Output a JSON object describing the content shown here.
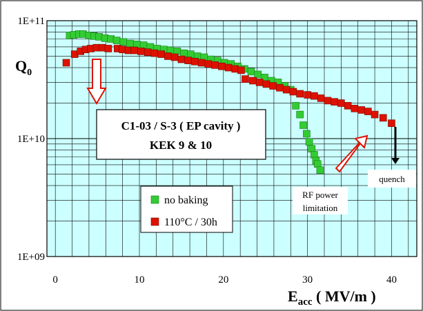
{
  "chart_data": {
    "type": "scatter",
    "ylabel": "Q",
    "ylabel_sub": "0",
    "xlabel_main": "E",
    "xlabel_sub": "acc",
    "xlabel_unit": " ( MV/m )",
    "xlim": [
      -1,
      43
    ],
    "ylim": [
      1000000000,
      100000000000
    ],
    "yscale": "log",
    "x_ticks": [
      "0",
      "10",
      "20",
      "30",
      "40"
    ],
    "y_ticks": [
      "1E+11",
      "1E+10",
      "1E+09"
    ],
    "grid": true,
    "background_color": "#ccffff",
    "title_lines": [
      "C1-03 / S-3 ( EP cavity )",
      "KEK 9 & 10"
    ],
    "legend_placement": "bottom-center",
    "annotations": {
      "quench": "quench",
      "rf_power_line1": "RF power",
      "rf_power_line2": "limitation"
    },
    "series": [
      {
        "name": "no baking",
        "color": "#33cc33",
        "x": [
          1.7,
          2.2,
          2.8,
          3.3,
          4.0,
          4.6,
          5.2,
          5.9,
          6.6,
          7.3,
          8.1,
          8.9,
          9.7,
          10.5,
          11.3,
          12.1,
          12.9,
          13.7,
          14.5,
          15.3,
          16.1,
          16.9,
          17.7,
          18.5,
          19.3,
          20.1,
          20.9,
          21.7,
          22.5,
          23.3,
          24.1,
          24.9,
          25.7,
          26.5,
          27.3,
          28.0,
          28.6,
          29.1,
          29.5,
          29.9,
          30.2,
          30.5,
          30.8,
          31.0,
          31.2,
          31.5
        ],
        "y": [
          75000000000.0,
          76000000000.0,
          77000000000.0,
          77000000000.0,
          75000000000.0,
          74000000000.0,
          73000000000.0,
          71000000000.0,
          70000000000.0,
          68000000000.0,
          66000000000.0,
          64000000000.0,
          63000000000.0,
          62000000000.0,
          60000000000.0,
          58000000000.0,
          57000000000.0,
          56000000000.0,
          55000000000.0,
          53000000000.0,
          52000000000.0,
          50000000000.0,
          49000000000.0,
          47000000000.0,
          46000000000.0,
          44000000000.0,
          43000000000.0,
          41000000000.0,
          39000000000.0,
          37000000000.0,
          35000000000.0,
          33000000000.0,
          31000000000.0,
          30000000000.0,
          28000000000.0,
          26000000000.0,
          19000000000.0,
          16000000000.0,
          13000000000.0,
          11000000000.0,
          9400000000.0,
          8200000000.0,
          7300000000.0,
          6500000000.0,
          6100000000.0,
          5400000000.0
        ]
      },
      {
        "name": "110°C / 30h",
        "color": "#dd1100",
        "x": [
          1.3,
          2.3,
          3.0,
          3.6,
          4.2,
          4.9,
          5.6,
          6.3,
          7.4,
          8.0,
          8.7,
          9.4,
          10.2,
          11.0,
          11.8,
          12.6,
          13.4,
          14.2,
          15.0,
          15.8,
          16.6,
          17.4,
          18.2,
          19.0,
          19.8,
          20.6,
          21.4,
          22.1,
          22.6,
          23.5,
          24.3,
          25.1,
          25.9,
          26.7,
          27.5,
          28.3,
          29.1,
          30.0,
          30.8,
          31.6,
          32.4,
          33.2,
          34.0,
          34.8,
          35.6,
          36.4,
          37.2,
          38.0,
          39.0,
          40.0
        ],
        "y": [
          44000000000.0,
          52000000000.0,
          55000000000.0,
          57000000000.0,
          58000000000.0,
          59000000000.0,
          59000000000.0,
          58000000000.0,
          58000000000.0,
          57000000000.0,
          56000000000.0,
          56000000000.0,
          55000000000.0,
          54000000000.0,
          53000000000.0,
          52000000000.0,
          50000000000.0,
          49000000000.0,
          47000000000.0,
          46000000000.0,
          45000000000.0,
          44000000000.0,
          43000000000.0,
          42000000000.0,
          41000000000.0,
          40000000000.0,
          39000000000.0,
          38000000000.0,
          32000000000.0,
          31000000000.0,
          30000000000.0,
          29000000000.0,
          28000000000.0,
          27000000000.0,
          26000000000.0,
          25000000000.0,
          24000000000.0,
          23500000000.0,
          23000000000.0,
          22000000000.0,
          21000000000.0,
          20500000000.0,
          20000000000.0,
          19000000000.0,
          18000000000.0,
          17500000000.0,
          17000000000.0,
          16000000000.0,
          15000000000.0,
          13500000000.0
        ]
      }
    ]
  }
}
